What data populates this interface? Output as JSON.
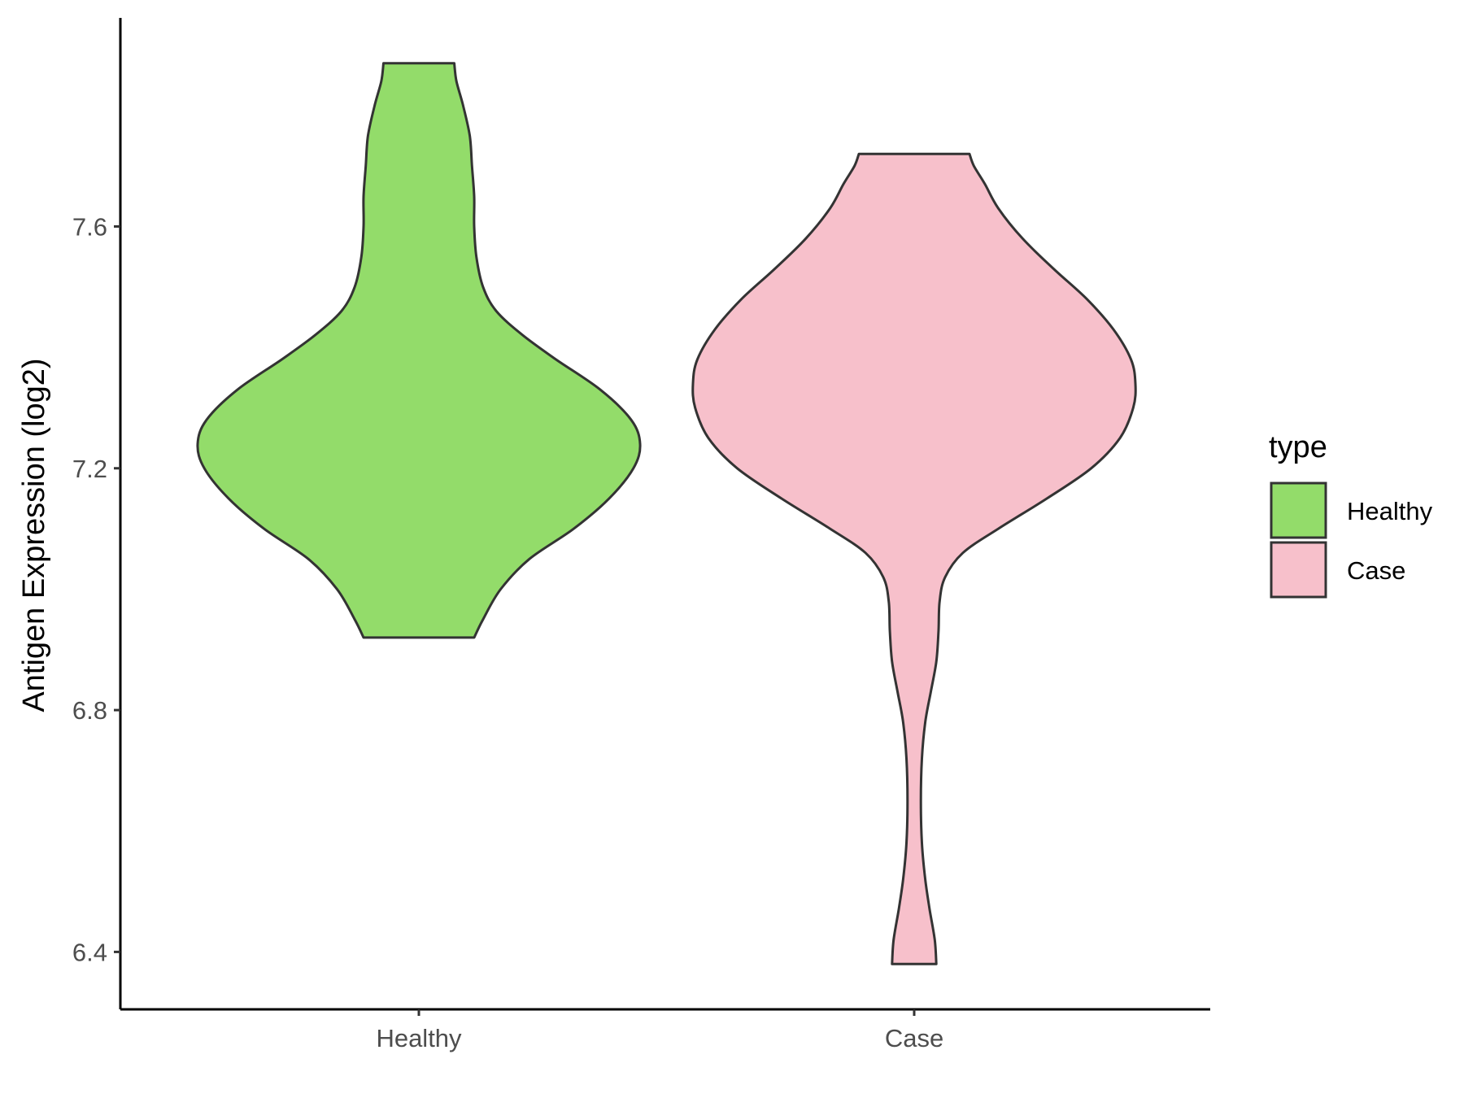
{
  "chart_data": {
    "type": "violin",
    "title": "",
    "xlabel": "",
    "ylabel": "Antigen Expression (log2)",
    "ylim": [
      6.305,
      7.945
    ],
    "y_ticks": [
      6.4,
      6.8,
      7.2,
      7.6
    ],
    "y_tick_labels": [
      "6.4",
      "6.8",
      "7.2",
      "7.6"
    ],
    "categories": [
      "Healthy",
      "Case"
    ],
    "grid": false,
    "legend": {
      "title": "type",
      "placement": "right",
      "entries": [
        {
          "label": "Healthy",
          "color": "#93dc6a"
        },
        {
          "label": "Case",
          "color": "#f7c0cb"
        }
      ]
    },
    "outline_color": "#333333",
    "series": [
      {
        "category": "Healthy",
        "color": "#93dc6a",
        "min": 6.92,
        "max": 7.87,
        "density": [
          {
            "y": 6.92,
            "w": 0.25
          },
          {
            "y": 6.95,
            "w": 0.29
          },
          {
            "y": 7.0,
            "w": 0.37
          },
          {
            "y": 7.05,
            "w": 0.5
          },
          {
            "y": 7.1,
            "w": 0.7
          },
          {
            "y": 7.15,
            "w": 0.86
          },
          {
            "y": 7.2,
            "w": 0.97
          },
          {
            "y": 7.24,
            "w": 1.0
          },
          {
            "y": 7.28,
            "w": 0.96
          },
          {
            "y": 7.33,
            "w": 0.82
          },
          {
            "y": 7.38,
            "w": 0.62
          },
          {
            "y": 7.42,
            "w": 0.47
          },
          {
            "y": 7.46,
            "w": 0.35
          },
          {
            "y": 7.5,
            "w": 0.29
          },
          {
            "y": 7.55,
            "w": 0.26
          },
          {
            "y": 7.6,
            "w": 0.25
          },
          {
            "y": 7.65,
            "w": 0.25
          },
          {
            "y": 7.7,
            "w": 0.24
          },
          {
            "y": 7.75,
            "w": 0.23
          },
          {
            "y": 7.8,
            "w": 0.2
          },
          {
            "y": 7.84,
            "w": 0.17
          },
          {
            "y": 7.87,
            "w": 0.16
          }
        ]
      },
      {
        "category": "Case",
        "color": "#f7c0cb",
        "min": 6.38,
        "max": 7.72,
        "density": [
          {
            "y": 6.38,
            "w": 0.1
          },
          {
            "y": 6.42,
            "w": 0.093
          },
          {
            "y": 6.47,
            "w": 0.07
          },
          {
            "y": 6.52,
            "w": 0.05
          },
          {
            "y": 6.58,
            "w": 0.035
          },
          {
            "y": 6.65,
            "w": 0.03
          },
          {
            "y": 6.72,
            "w": 0.035
          },
          {
            "y": 6.78,
            "w": 0.05
          },
          {
            "y": 6.83,
            "w": 0.075
          },
          {
            "y": 6.88,
            "w": 0.1
          },
          {
            "y": 6.93,
            "w": 0.11
          },
          {
            "y": 6.98,
            "w": 0.115
          },
          {
            "y": 7.02,
            "w": 0.14
          },
          {
            "y": 7.06,
            "w": 0.22
          },
          {
            "y": 7.1,
            "w": 0.38
          },
          {
            "y": 7.15,
            "w": 0.6
          },
          {
            "y": 7.2,
            "w": 0.8
          },
          {
            "y": 7.25,
            "w": 0.93
          },
          {
            "y": 7.3,
            "w": 0.99
          },
          {
            "y": 7.34,
            "w": 1.0
          },
          {
            "y": 7.38,
            "w": 0.98
          },
          {
            "y": 7.43,
            "w": 0.9
          },
          {
            "y": 7.48,
            "w": 0.78
          },
          {
            "y": 7.53,
            "w": 0.63
          },
          {
            "y": 7.58,
            "w": 0.49
          },
          {
            "y": 7.63,
            "w": 0.38
          },
          {
            "y": 7.67,
            "w": 0.32
          },
          {
            "y": 7.7,
            "w": 0.27
          },
          {
            "y": 7.72,
            "w": 0.25
          }
        ]
      }
    ]
  }
}
